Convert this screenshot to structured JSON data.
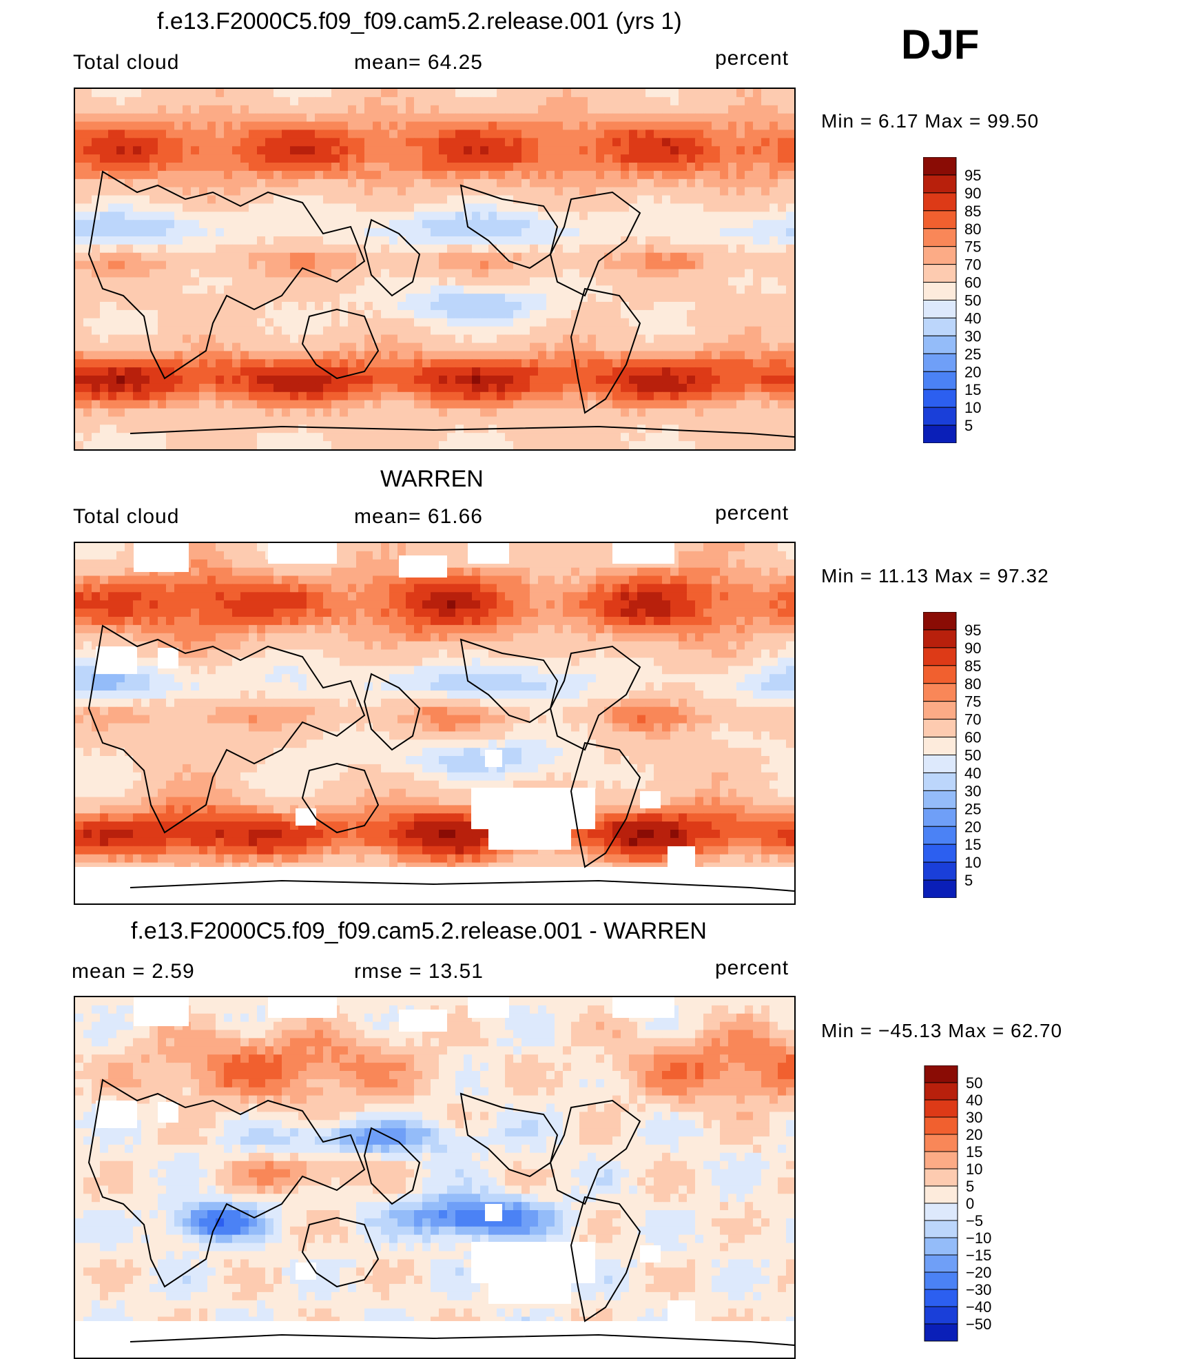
{
  "season": "DJF",
  "colors": {
    "cloud_palette": [
      "#000080",
      "#0a1fb8",
      "#1a3fd9",
      "#2c5ff0",
      "#4b82f5",
      "#6f9ff7",
      "#94bcf9",
      "#bcd6fb",
      "#dde9fc",
      "#fdebdc",
      "#fdcbb0",
      "#fcab86",
      "#f98758",
      "#f1602f",
      "#dd3a17",
      "#b8200c",
      "#8a0c05"
    ],
    "diff_palette": [
      "#000080",
      "#0a1fb8",
      "#1a3fd9",
      "#2c5ff0",
      "#4b82f5",
      "#6f9ff7",
      "#94bcf9",
      "#bcd6fb",
      "#dde9fc",
      "#fdebdc",
      "#fdcbb0",
      "#fcab86",
      "#f98758",
      "#f1602f",
      "#dd3a17",
      "#b8200c",
      "#8a0c05"
    ],
    "missing": "#ffffff",
    "coast": "#000000"
  },
  "panels": [
    {
      "title": "f.e13.F2000C5.f09_f09.cam5.2.release.001 (yrs 1)",
      "left_label": "Total cloud",
      "mid_label": "mean=   64.25",
      "units": "percent",
      "minmax": "Min =    6.17 Max =   99.50",
      "colorbar_labels": [
        "95",
        "90",
        "85",
        "80",
        "75",
        "70",
        "60",
        "50",
        "40",
        "30",
        "25",
        "20",
        "15",
        "10",
        "5"
      ]
    },
    {
      "title": "WARREN",
      "left_label": "Total cloud",
      "mid_label": "mean=   61.66",
      "units": "percent",
      "minmax": "Min =   11.13 Max =   97.32",
      "colorbar_labels": [
        "95",
        "90",
        "85",
        "80",
        "75",
        "70",
        "60",
        "50",
        "40",
        "30",
        "25",
        "20",
        "15",
        "10",
        "5"
      ]
    },
    {
      "title": "f.e13.F2000C5.f09_f09.cam5.2.release.001 - WARREN",
      "left_label": "mean =    2.59",
      "mid_label": "rmse =   13.51",
      "units": "percent",
      "minmax": "Min = −45.13 Max =   62.70",
      "colorbar_labels": [
        "50",
        "40",
        "30",
        "20",
        "15",
        "10",
        "5",
        "0",
        "−5",
        "−10",
        "−15",
        "−20",
        "−30",
        "−40",
        "−50"
      ]
    }
  ],
  "chart_data": [
    {
      "type": "heatmap",
      "title": "f.e13.F2000C5.f09_f09.cam5.2.release.001 (yrs 1)",
      "variable": "Total cloud",
      "units": "percent",
      "mean": 64.25,
      "min": 6.17,
      "max": 99.5,
      "levels": [
        5,
        10,
        15,
        20,
        25,
        30,
        40,
        50,
        60,
        70,
        75,
        80,
        85,
        90,
        95
      ],
      "projection": "cylindrical equidistant, 0°E centred Pacific",
      "zonal_profile": {
        "lat": [
          80,
          60,
          40,
          20,
          0,
          -20,
          -40,
          -60,
          -80
        ],
        "value": [
          88,
          80,
          68,
          50,
          70,
          58,
          85,
          88,
          60
        ]
      }
    },
    {
      "type": "heatmap",
      "title": "WARREN",
      "variable": "Total cloud",
      "units": "percent",
      "mean": 61.66,
      "min": 11.13,
      "max": 97.32,
      "levels": [
        5,
        10,
        15,
        20,
        25,
        30,
        40,
        50,
        60,
        70,
        75,
        80,
        85,
        90,
        95
      ],
      "projection": "cylindrical equidistant, 0°E centred Pacific",
      "zonal_profile": {
        "lat": [
          80,
          60,
          40,
          20,
          0,
          -20,
          -40,
          -60,
          -80
        ],
        "value": [
          70,
          75,
          68,
          55,
          62,
          58,
          78,
          88,
          null
        ]
      }
    },
    {
      "type": "heatmap",
      "title": "f.e13.F2000C5.f09_f09.cam5.2.release.001 - WARREN",
      "variable": "Total cloud difference",
      "units": "percent",
      "mean": 2.59,
      "rmse": 13.51,
      "min": -45.13,
      "max": 62.7,
      "levels": [
        -50,
        -40,
        -30,
        -20,
        -15,
        -10,
        -5,
        0,
        5,
        10,
        15,
        20,
        30,
        40,
        50
      ],
      "zonal_profile": {
        "lat": [
          80,
          60,
          40,
          20,
          0,
          -20,
          -40,
          -60,
          -80
        ],
        "value": [
          20,
          15,
          8,
          -12,
          6,
          -10,
          5,
          -4,
          null
        ]
      }
    }
  ]
}
